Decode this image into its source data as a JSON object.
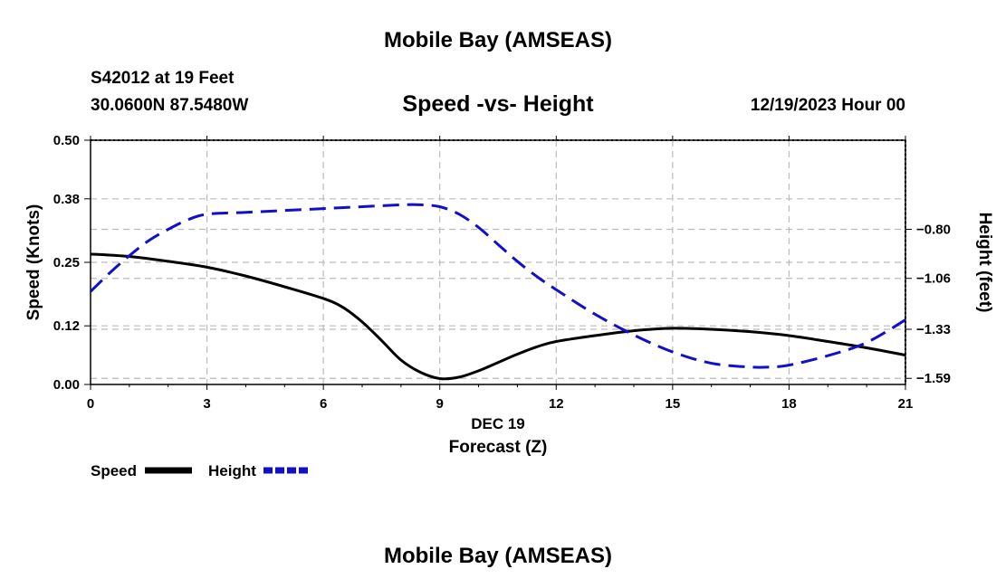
{
  "header": {
    "title": "Mobile Bay (AMSEAS)",
    "station": "S42012 at 19 Feet",
    "coords": "30.0600N  87.5480W",
    "chart_title": "Speed -vs- Height",
    "date": "12/19/2023 Hour 00"
  },
  "footer": {
    "title": "Mobile Bay (AMSEAS)"
  },
  "colors": {
    "speed": "#000000",
    "height": "#1010c8",
    "grid": "#bbbbbb"
  },
  "chart_data": {
    "type": "line",
    "title": "Speed -vs- Height",
    "xlabel": "Forecast (Z)",
    "xlabel_date": "DEC 19",
    "ylabel": "Speed (Knots)",
    "y2label": "Height (feet)",
    "xlim": [
      0,
      21
    ],
    "ylim": [
      0,
      0.5
    ],
    "y2lim": [
      -1.6225,
      -0.3275
    ],
    "x_ticks": [
      0,
      3,
      6,
      9,
      12,
      15,
      18,
      21
    ],
    "x_tick_labels": [
      "0",
      "3",
      "6",
      "9",
      "12",
      "15",
      "18",
      "21"
    ],
    "y_ticks": [
      0.0,
      0.12,
      0.25,
      0.38,
      0.5
    ],
    "y_tick_labels": [
      "0.00",
      "0.12",
      "0.25",
      "0.38",
      "0.50"
    ],
    "y2_ticks": [
      -1.59,
      -1.33,
      -1.06,
      -0.8
    ],
    "y2_tick_labels": [
      "−1.59",
      "−1.33",
      "−1.06",
      "−0.80"
    ],
    "grid": true,
    "series": [
      {
        "name": "Speed",
        "axis": "left",
        "style": "solid",
        "x": [
          0,
          1,
          2,
          3,
          4,
          5,
          6,
          6.5,
          7,
          7.5,
          8,
          8.5,
          9,
          9.5,
          10,
          10.5,
          11,
          11.5,
          12,
          13,
          14,
          15,
          16,
          17,
          18,
          19,
          20,
          21
        ],
        "values": [
          0.267,
          0.262,
          0.252,
          0.24,
          0.222,
          0.2,
          0.176,
          0.158,
          0.128,
          0.09,
          0.05,
          0.025,
          0.012,
          0.015,
          0.028,
          0.045,
          0.062,
          0.077,
          0.088,
          0.1,
          0.11,
          0.115,
          0.113,
          0.108,
          0.1,
          0.088,
          0.075,
          0.06
        ]
      },
      {
        "name": "Height",
        "axis": "right",
        "style": "dashed",
        "x": [
          0,
          0.5,
          1,
          1.5,
          2,
          2.5,
          3,
          4,
          5,
          6,
          7,
          8,
          8.5,
          9,
          9.5,
          10,
          10.5,
          11,
          11.5,
          12,
          13,
          14,
          15,
          16,
          17,
          17.5,
          18,
          19,
          20,
          21
        ],
        "values": [
          -1.13,
          -1.03,
          -0.94,
          -0.86,
          -0.8,
          -0.75,
          -0.72,
          -0.71,
          -0.7,
          -0.69,
          -0.68,
          -0.67,
          -0.67,
          -0.68,
          -0.72,
          -0.79,
          -0.88,
          -0.97,
          -1.05,
          -1.12,
          -1.25,
          -1.36,
          -1.45,
          -1.51,
          -1.53,
          -1.53,
          -1.52,
          -1.47,
          -1.4,
          -1.28
        ]
      }
    ],
    "legend": {
      "placement": "bottom-left",
      "entries": [
        "Speed",
        "Height"
      ]
    }
  }
}
